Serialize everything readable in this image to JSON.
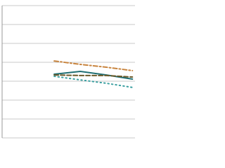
{
  "chart_data": {
    "type": "line",
    "x": [
      2,
      3,
      4,
      5
    ],
    "xlim": [
      0,
      5.1
    ],
    "ylim": [
      0,
      7
    ],
    "yticks": [
      0,
      1,
      2,
      3,
      4,
      5,
      6,
      7
    ],
    "grid": true,
    "series": [
      {
        "color": "#c8843e",
        "dash": "6,3,2,3",
        "values": [
          4.07,
          3.89,
          3.74,
          3.56
        ]
      },
      {
        "color": "#1f6e73",
        "dash": "",
        "values": [
          3.37,
          3.52,
          3.33,
          3.11
        ]
      },
      {
        "color": "#6b5a2a",
        "dash": "6,3",
        "values": [
          3.33,
          3.3,
          3.3,
          3.22
        ]
      },
      {
        "color": "#3a9fa0",
        "dash": "1.5,4",
        "values": [
          3.26,
          3.07,
          2.89,
          2.67
        ]
      }
    ]
  }
}
